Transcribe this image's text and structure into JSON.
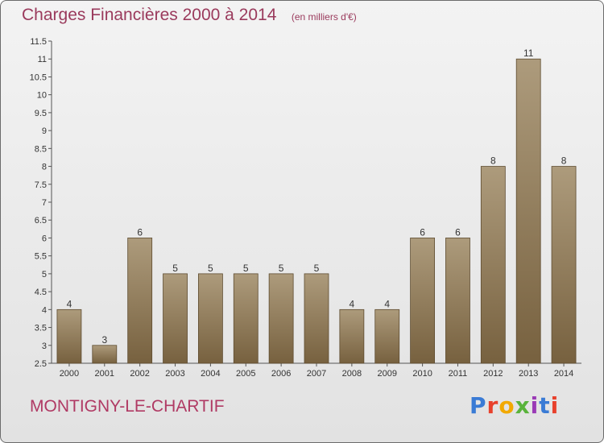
{
  "header": {
    "title": "Charges Financières 2000 à 2014",
    "subtitle": "(en milliers d'€)"
  },
  "footer": {
    "location": "MONTIGNY-LE-CHARTIF",
    "logo_text": "Proxiti",
    "logo_colors": [
      "#3a7bd5",
      "#e8412c",
      "#f2a900",
      "#59b33b",
      "#9a3ab6",
      "#3a7bd5",
      "#e8412c"
    ]
  },
  "colors": {
    "bar_top": "#ad9b7c",
    "bar_bottom": "#77613f",
    "label": "#333333"
  },
  "chart_data": {
    "type": "bar",
    "title": "Charges Financières 2000 à 2014",
    "subtitle": "(en milliers d'€)",
    "categories": [
      "2000",
      "2001",
      "2002",
      "2003",
      "2004",
      "2005",
      "2006",
      "2007",
      "2008",
      "2009",
      "2010",
      "2011",
      "2012",
      "2013",
      "2014"
    ],
    "values": [
      4,
      3,
      6,
      5,
      5,
      5,
      5,
      5,
      4,
      4,
      6,
      6,
      8,
      11,
      8
    ],
    "data_labels": [
      "4",
      "3",
      "6",
      "5",
      "5",
      "5",
      "5",
      "5",
      "4",
      "4",
      "6",
      "6",
      "8",
      "11",
      "8"
    ],
    "ylim": [
      2.5,
      11.5
    ],
    "yticks": [
      "2.5",
      "3",
      "3.5",
      "4",
      "4.5",
      "5",
      "5.5",
      "6",
      "6.5",
      "7",
      "7.5",
      "8",
      "8.5",
      "9",
      "9.5",
      "10",
      "10.5",
      "11",
      "11.5"
    ],
    "grid": false,
    "legend": "none"
  }
}
